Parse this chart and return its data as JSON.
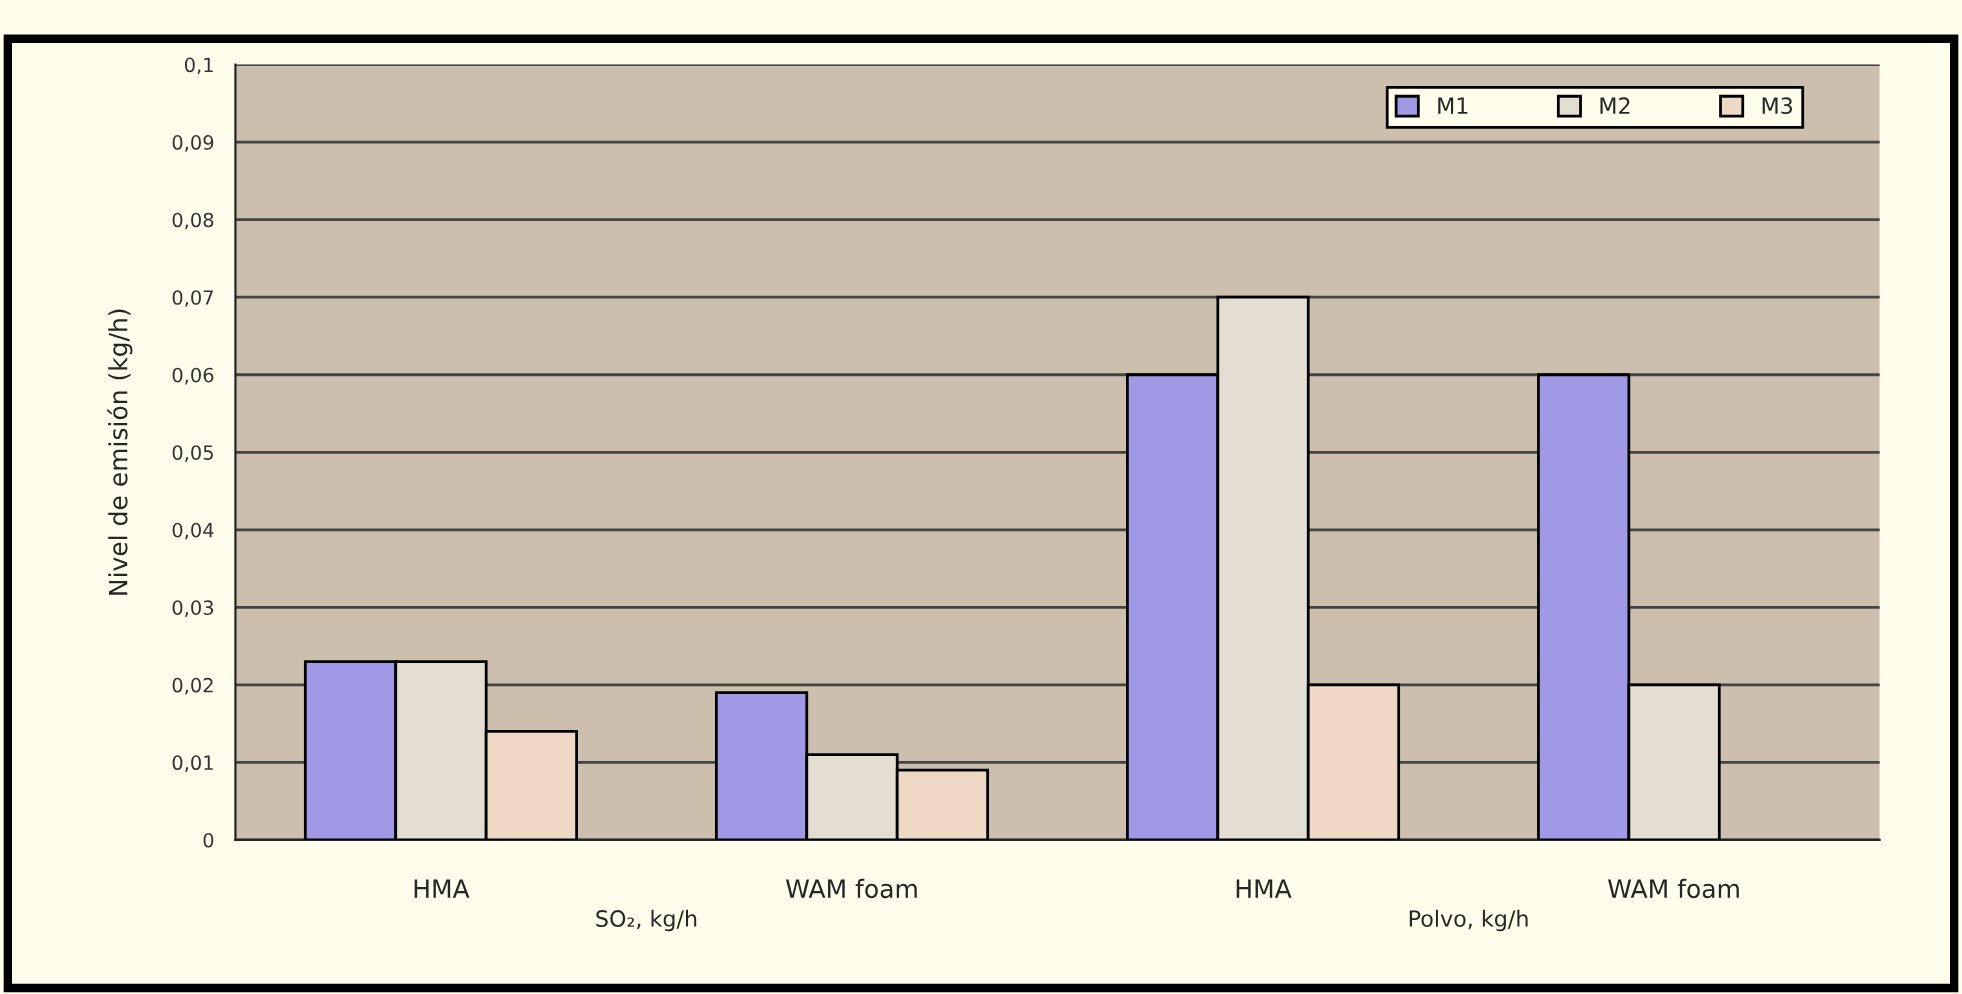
{
  "chart_data": {
    "type": "bar",
    "ylabel": "Nivel de emisión (kg/h)",
    "categories": [
      "HMA",
      "WAM foam",
      "HMA",
      "WAM foam"
    ],
    "series": [
      {
        "name": "M1",
        "color": "#a09ae6",
        "values": [
          0.023,
          0.019,
          0.06,
          0.06
        ]
      },
      {
        "name": "M2",
        "color": "#e4ded2",
        "values": [
          0.023,
          0.011,
          0.07,
          0.02
        ]
      },
      {
        "name": "M3",
        "color": "#efd9c4",
        "values": [
          0.014,
          0.009,
          0.02,
          null
        ]
      }
    ],
    "annotations": [
      "SO₂, kg/h",
      "Polvo, kg/h"
    ],
    "ylim": [
      0,
      0.1
    ],
    "yticks": [
      0,
      {
        "value": 0.01,
        "label": "0,01"
      },
      {
        "value": 0.02,
        "label": "0,02"
      },
      {
        "value": 0.03,
        "label": "0,03"
      },
      {
        "value": 0.04,
        "label": "0,04"
      },
      {
        "value": 0.05,
        "label": "0,05"
      },
      {
        "value": 0.06,
        "label": "0,06"
      },
      {
        "value": 0.07,
        "label": "0,07"
      },
      {
        "value": 0.08,
        "label": "0,08"
      },
      {
        "value": 0.09,
        "label": "0,09"
      },
      {
        "value": 0.1,
        "label": "0,1"
      }
    ],
    "grid": "y",
    "legend": "top right"
  }
}
